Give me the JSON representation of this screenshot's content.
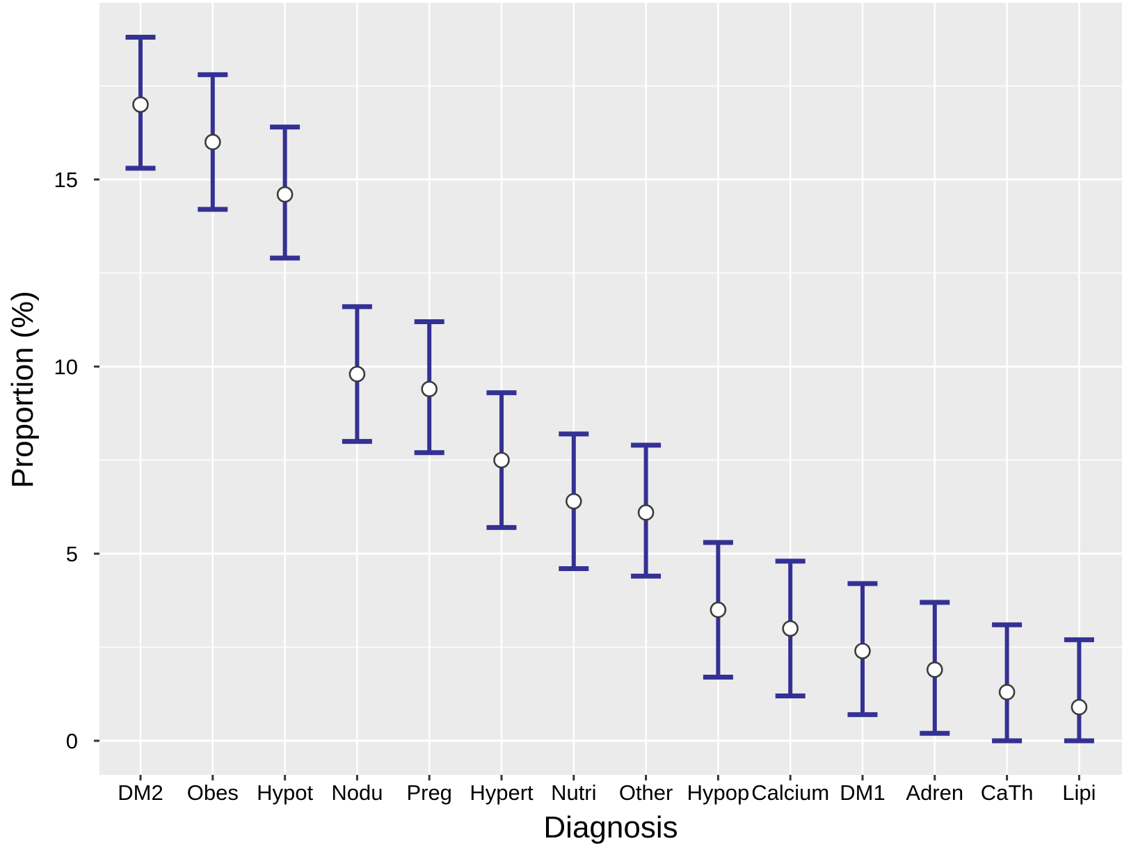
{
  "figure": {
    "background": "#FFFFFF",
    "panel_background": "#EBEBEB",
    "grid_color": "#FFFFFF",
    "tick_mark_color": "#333333",
    "text_color": "#000000"
  },
  "chart_data": {
    "type": "scatter",
    "subtype": "point-with-errorbars",
    "title": "",
    "xlabel": "Diagnosis",
    "ylabel": "Proportion (%)",
    "categories": [
      "DM2",
      "Obes",
      "Hypot",
      "Nodu",
      "Preg",
      "Hypert",
      "Nutri",
      "Other",
      "Hypop",
      "Calcium",
      "DM1",
      "Adren",
      "CaTh",
      "Lipi"
    ],
    "series": [
      {
        "name": "Proportion (%)",
        "values": [
          17.0,
          16.0,
          14.6,
          9.8,
          9.4,
          7.5,
          6.4,
          6.1,
          3.5,
          3.0,
          2.4,
          1.9,
          1.3,
          0.9
        ],
        "ci_low": [
          15.3,
          14.2,
          12.9,
          8.0,
          7.7,
          5.7,
          4.6,
          4.4,
          1.7,
          1.2,
          0.7,
          0.2,
          0.0,
          0.0
        ],
        "ci_high": [
          18.8,
          17.8,
          16.4,
          11.6,
          11.2,
          9.3,
          8.2,
          7.9,
          5.3,
          4.8,
          4.2,
          3.7,
          3.1,
          2.7
        ]
      }
    ],
    "y_ticks": [
      0,
      5,
      10,
      15
    ],
    "y_minor_ticks": [
      2.5,
      7.5,
      12.5,
      17.5
    ],
    "ylim": [
      -0.9,
      19.7
    ],
    "grid": "horizontal major+minor white, vertical major white on gray panel",
    "legend": "none",
    "marker": "open-circle",
    "errorbar_color": "#343194",
    "marker_fill": "#FFFFFF",
    "marker_stroke": "#3B3B3B"
  }
}
